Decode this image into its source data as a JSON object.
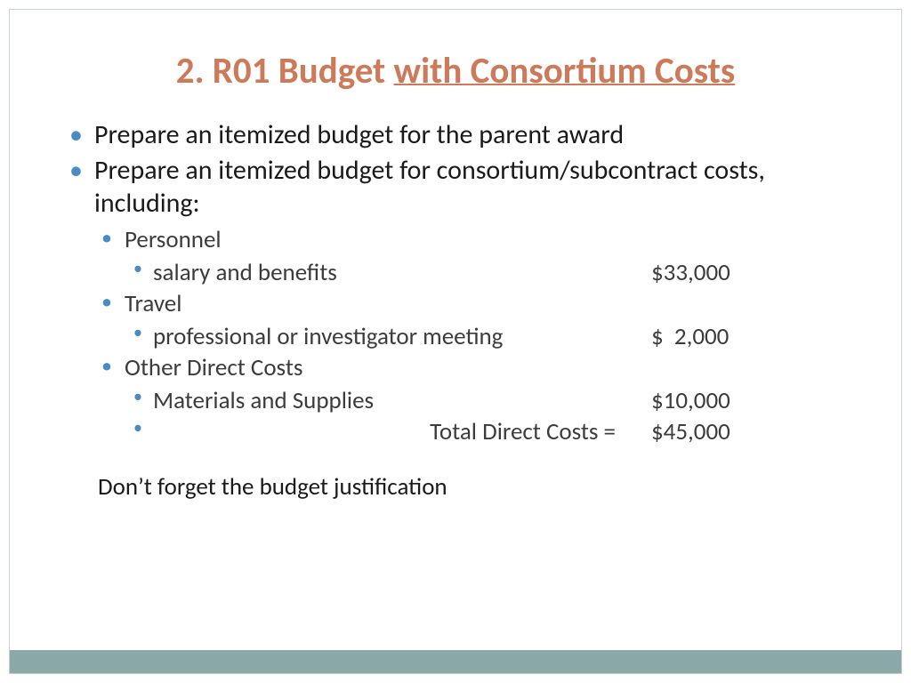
{
  "title": {
    "prefix": "2. R01 Budget ",
    "underlined": "with Consortium Costs"
  },
  "colors": {
    "title": "#cd7a5a",
    "bullet": "#4a8bc2",
    "text_primary": "#1a1a1a",
    "text_secondary": "#3c3c3c",
    "border": "#c8d4d4",
    "bottom_bar": "#8aa8a8",
    "background": "#ffffff"
  },
  "typography": {
    "title_fontsize": 41,
    "title_weight": 700,
    "lvl1_fontsize": 30,
    "lvl2_fontsize": 27,
    "lvl3_fontsize": 27,
    "font_family": "Calibri"
  },
  "bullets": {
    "item1": "Prepare an itemized budget for the parent award",
    "item2": "Prepare an itemized budget for consortium/subcontract costs, including:",
    "personnel": {
      "label": "Personnel",
      "sub": {
        "desc": "salary and benefits",
        "amount": "$33,000"
      }
    },
    "travel": {
      "label": "Travel",
      "sub": {
        "desc": "professional or investigator meeting",
        "amount": "$  2,000"
      }
    },
    "other": {
      "label": "Other Direct Costs",
      "sub": {
        "desc": "Materials and Supplies",
        "amount": "$10,000"
      }
    },
    "total": {
      "desc": "Total Direct Costs =",
      "amount": "$45,000"
    }
  },
  "footnote": "Don’t forget the budget justification"
}
